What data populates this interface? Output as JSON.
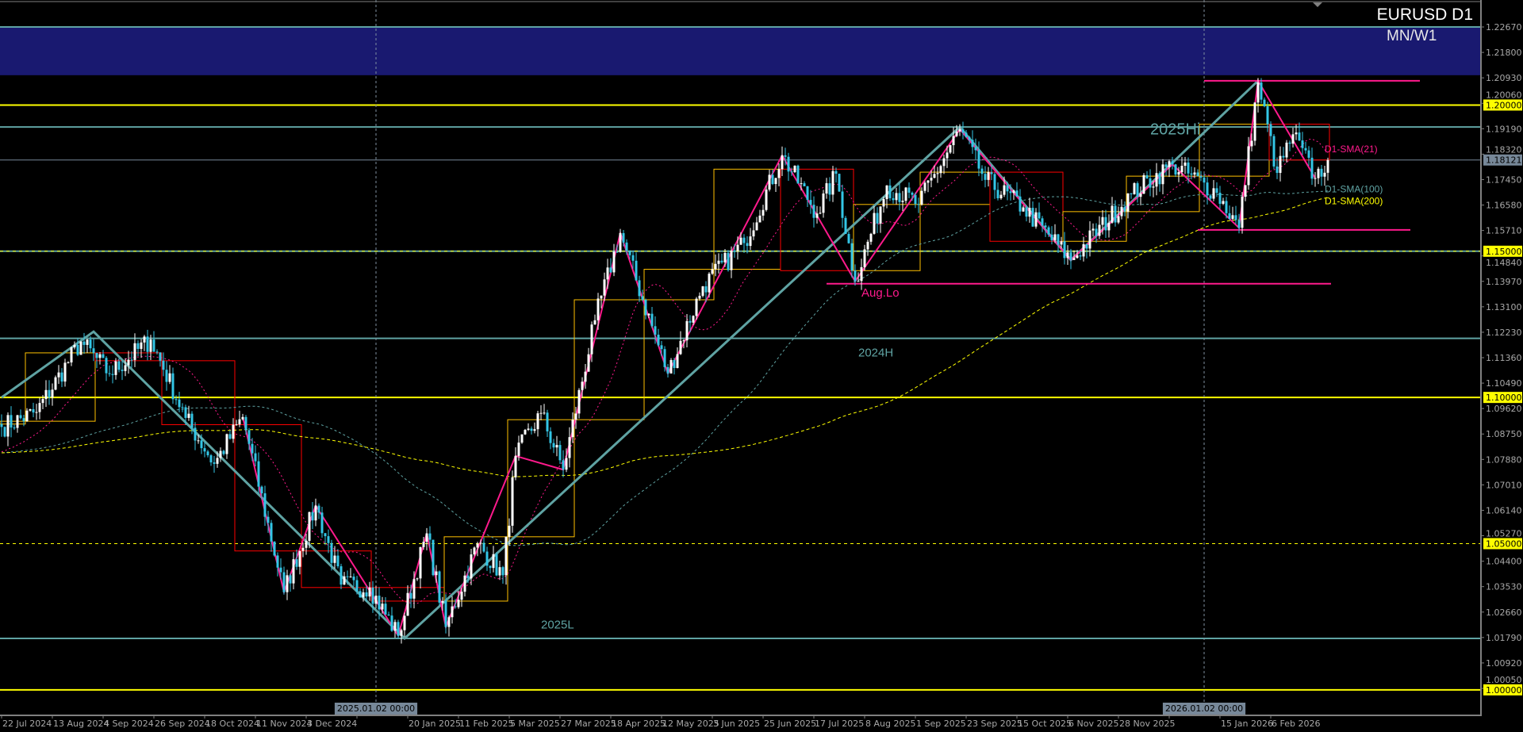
{
  "header": {
    "symbol_timeframe": "EURUSD D1",
    "zone_label": "MN/W1"
  },
  "colors": {
    "background": "#000000",
    "bull_candle": "#ffffff",
    "bear_candle": "#33c6e6",
    "teal_level": "#5fa3a3",
    "yellow_level": "#ffff00",
    "pink": "#ff1a8c",
    "month_up_box": "#ffc000",
    "month_down_box": "#ff0000",
    "zone": "#191970",
    "axis": "#808080",
    "current_price_bg": "#778899"
  },
  "chart_data": {
    "type": "candlestick",
    "instrument": "EURUSD",
    "timeframe": "D1",
    "ylim": [
      0.999,
      1.236
    ],
    "grid": false,
    "price_path": [
      [
        "2024-07-22",
        1.0899
      ],
      [
        "2024-08-06",
        1.095
      ],
      [
        "2024-08-26",
        1.1191
      ],
      [
        "2024-09-06",
        1.108
      ],
      [
        "2024-09-25",
        1.1198
      ],
      [
        "2024-10-10",
        1.093
      ],
      [
        "2024-10-23",
        1.0773
      ],
      [
        "2024-11-05",
        1.0933
      ],
      [
        "2024-11-22",
        1.0334
      ],
      [
        "2024-12-06",
        1.063
      ],
      [
        "2024-12-18",
        1.036
      ],
      [
        "2024-12-31",
        1.035
      ],
      [
        "2025-01-13",
        1.0185
      ],
      [
        "2025-01-24",
        1.0535
      ],
      [
        "2025-02-03",
        1.0215
      ],
      [
        "2025-02-17",
        1.05
      ],
      [
        "2025-02-27",
        1.0392
      ],
      [
        "2025-03-05",
        1.08
      ],
      [
        "2025-03-17",
        1.0947
      ],
      [
        "2025-03-26",
        1.0753
      ],
      [
        "2025-04-09",
        1.1264
      ],
      [
        "2025-04-21",
        1.1562
      ],
      [
        "2025-05-12",
        1.1082
      ],
      [
        "2025-05-27",
        1.138
      ],
      [
        "2025-06-13",
        1.1528
      ],
      [
        "2025-07-01",
        1.1828
      ],
      [
        "2025-07-16",
        1.1629
      ],
      [
        "2025-07-24",
        1.1765
      ],
      [
        "2025-08-01",
        1.1397
      ],
      [
        "2025-08-15",
        1.1725
      ],
      [
        "2025-08-29",
        1.166
      ],
      [
        "2025-09-17",
        1.1917
      ],
      [
        "2025-09-29",
        1.1744
      ],
      [
        "2025-10-15",
        1.165
      ],
      [
        "2025-11-05",
        1.147
      ],
      [
        "2025-12-02",
        1.1695
      ],
      [
        "2025-12-19",
        1.1797
      ],
      [
        "2026-01-08",
        1.17
      ],
      [
        "2026-01-19",
        1.158
      ],
      [
        "2026-01-27",
        1.2077
      ],
      [
        "2026-02-04",
        1.1768
      ],
      [
        "2026-02-11",
        1.19
      ],
      [
        "2026-02-20",
        1.175
      ],
      [
        "2026-02-26",
        1.1812
      ]
    ],
    "current_price": "1.18121",
    "indicators": [
      {
        "name": "D1-SMA(21)",
        "period": 21,
        "color": "#ff1a8c"
      },
      {
        "name": "D1-SMA(100)",
        "period": 100,
        "color": "#5fa3a3"
      },
      {
        "name": "D1-SMA(200)",
        "period": 200,
        "color": "#ffff00"
      }
    ],
    "zone": {
      "from": 1.2102,
      "to": 1.2267
    },
    "levels": [
      {
        "price": 1.2267,
        "color": "#5fa3a3",
        "style": "solid"
      },
      {
        "price": 1.2,
        "color": "#ffff00",
        "style": "solid"
      },
      {
        "price": 1.1925,
        "color": "#5fa3a3",
        "style": "solid"
      },
      {
        "price": 1.15,
        "color": "#5fa3a3",
        "style": "solid"
      },
      {
        "price": 1.15,
        "color": "#ffff00",
        "style": "dashed"
      },
      {
        "price": 1.1202,
        "color": "#5fa3a3",
        "style": "solid"
      },
      {
        "price": 1.1,
        "color": "#ffff00",
        "style": "solid"
      },
      {
        "price": 1.05,
        "color": "#ffff00",
        "style": "dashed"
      },
      {
        "price": 1.0176,
        "color": "#5fa3a3",
        "style": "solid"
      },
      {
        "price": 1.0,
        "color": "#ffff00",
        "style": "solid"
      }
    ],
    "pink_segments": [
      {
        "price": 1.2083,
        "from": "2026-01-02",
        "to": "2026-04-08"
      },
      {
        "price": 1.1389,
        "from": "2025-07-21",
        "to": "2026-02-27"
      },
      {
        "price": 1.1573,
        "from": "2025-12-31",
        "to": "2026-04-03"
      }
    ],
    "trendlines_teal": [
      [
        "2024-07-22",
        1.1
      ],
      [
        "2024-08-30",
        1.1225
      ],
      [
        "2025-01-15",
        1.0176
      ],
      [
        "2025-09-17",
        1.1925
      ],
      [
        "2025-11-05",
        1.147
      ],
      [
        "2026-01-27",
        1.2083
      ]
    ],
    "zigzag_pink": [
      [
        "2024-11-05",
        1.0933
      ],
      [
        "2024-11-22",
        1.0334
      ],
      [
        "2024-12-06",
        1.063
      ],
      [
        "2025-01-13",
        1.0185
      ],
      [
        "2025-01-24",
        1.0535
      ],
      [
        "2025-02-03",
        1.0215
      ],
      [
        "2025-03-05",
        1.08
      ],
      [
        "2025-03-26",
        1.0753
      ],
      [
        "2025-04-21",
        1.1562
      ],
      [
        "2025-05-12",
        1.1082
      ],
      [
        "2025-07-01",
        1.1828
      ],
      [
        "2025-08-01",
        1.1397
      ],
      [
        "2025-09-17",
        1.1917
      ],
      [
        "2025-11-05",
        1.147
      ],
      [
        "2025-12-19",
        1.1797
      ],
      [
        "2026-01-19",
        1.158
      ],
      [
        "2026-01-27",
        1.2083
      ],
      [
        "2026-02-20",
        1.175
      ]
    ],
    "annotations": [
      {
        "text": "2025Hi",
        "date": "2025-12-10",
        "price": 1.19,
        "color": "#5fa3a3"
      },
      {
        "text": "Aug.Lo",
        "date": "2025-08-05",
        "price": 1.1345,
        "color": "#ff1a8c"
      },
      {
        "text": "2024H",
        "date": "2025-08-04",
        "price": 1.114,
        "color": "#5fa3a3"
      },
      {
        "text": "2025L",
        "date": "2025-03-17",
        "price": 1.021,
        "color": "#5fa3a3"
      }
    ],
    "y_ticks": [
      "1.22670",
      "1.21800",
      "1.20930",
      "1.20060",
      "1.19190",
      "1.18320",
      "1.17450",
      "1.16580",
      "1.15710",
      "1.14840",
      "1.13970",
      "1.13100",
      "1.12230",
      "1.11360",
      "1.10490",
      "1.09620",
      "1.08750",
      "1.07880",
      "1.07010",
      "1.06140",
      "1.05270",
      "1.04400",
      "1.03530",
      "1.02660",
      "1.01790",
      "1.00920",
      "1.00050"
    ],
    "price_labels": [
      "1.20000",
      "1.15000",
      "1.10000",
      "1.05000",
      "1.00000"
    ],
    "x_ticks": [
      "22 Jul 2024",
      "13 Aug 2024",
      "4 Sep 2024",
      "26 Sep 2024",
      "18 Oct 2024",
      "11 Nov 2024",
      "3 Dec 2024",
      "",
      "20 Jan 2025",
      "11 Feb 2025",
      "5 Mar 2025",
      "27 Mar 2025",
      "18 Apr 2025",
      "12 May 2025",
      "3 Jun 2025",
      "25 Jun 2025",
      "17 Jul 2025",
      "8 Aug 2025",
      "1 Sep 2025",
      "23 Sep 2025",
      "15 Oct 2025",
      "6 Nov 2025",
      "28 Nov 2025",
      "",
      "15 Jan 2026",
      "6 Feb 2026"
    ],
    "period_separators": [
      {
        "date": "2025-01-02",
        "label": "2025.01.02 00:00"
      },
      {
        "date": "2026-01-02",
        "label": "2026.01.02 00:00"
      }
    ]
  }
}
